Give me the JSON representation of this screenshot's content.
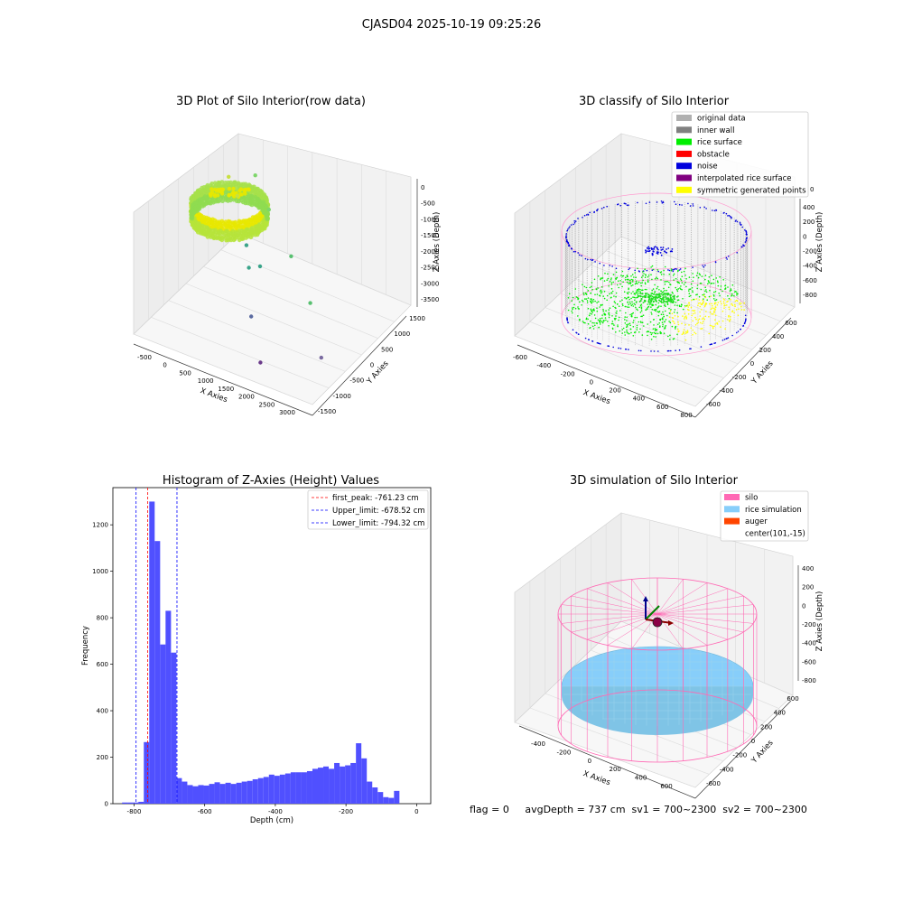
{
  "figure": {
    "suptitle": "CJASD04 2025-10-19 09:25:26",
    "status_line": "flag = 0     avgDepth = 737 cm  sv1 = 700~2300  sv2 = 700~2300"
  },
  "colors": {
    "raw_yellow": "#e8e800",
    "raw_green": "#8fdc50",
    "original_data": "#b0b0b0",
    "inner_wall": "#808080",
    "rice_surface": "#00ee00",
    "obstacle": "#ff0000",
    "noise": "#0000dd",
    "interpolated_rice_surface": "#800080",
    "symmetric_generated_points": "#ffff00",
    "silo": "#ff69b4",
    "rice_simulation": "#87cefa",
    "auger": "#ff4500",
    "hist_bar": "#4c4cff",
    "first_peak_line": "#ff0000",
    "limit_line": "#0000ff"
  },
  "chart_data": [
    {
      "type": "scatter",
      "id": "raw",
      "title": "3D Plot of Silo Interior(row data)",
      "xlabel": "X Axies",
      "ylabel": "Y Axies",
      "zlabel": "Z Axies (Depth)",
      "x_ticks": [
        "-500",
        "0",
        "500",
        "1000",
        "1500",
        "2000",
        "2500",
        "3000"
      ],
      "y_ticks": [
        "-1500",
        "-1000",
        "-500",
        "0",
        "500",
        "1000",
        "1500"
      ],
      "z_ticks": [
        "0",
        "-500",
        "-1000",
        "-1500",
        "-2000",
        "-2500",
        "-3000",
        "-3500"
      ],
      "xlim": [
        -600,
        3000
      ],
      "ylim": [
        -1500,
        1500
      ],
      "zlim": [
        -3700,
        0
      ],
      "outliers": [
        {
          "x": 400,
          "y": 800,
          "z": -600,
          "color": "#7ed66a"
        },
        {
          "x": 800,
          "y": 600,
          "z": -1200,
          "color": "#7ed66a"
        },
        {
          "x": 1500,
          "y": 200,
          "z": -1800,
          "color": "#58c070"
        },
        {
          "x": 2200,
          "y": -300,
          "z": -2300,
          "color": "#58c070"
        },
        {
          "x": 900,
          "y": -200,
          "z": -2100,
          "color": "#3aa48a"
        },
        {
          "x": 1000,
          "y": 0,
          "z": -2200,
          "color": "#3aa48a"
        },
        {
          "x": 600,
          "y": 200,
          "z": -2000,
          "color": "#3aa48a"
        },
        {
          "x": 1200,
          "y": -600,
          "z": -3000,
          "color": "#5a6aa0"
        },
        {
          "x": 2800,
          "y": -900,
          "z": -3000,
          "color": "#7a6aa0"
        },
        {
          "x": 1700,
          "y": -1100,
          "z": -3600,
          "color": "#6a3a8a"
        },
        {
          "x": 100,
          "y": 700,
          "z": -1300,
          "color": "#c8e040"
        },
        {
          "x": -200,
          "y": 900,
          "z": -1100,
          "color": "#c8e040"
        }
      ]
    },
    {
      "type": "scatter",
      "id": "classify",
      "title": "3D classify of Silo Interior",
      "xlabel": "X Axies",
      "ylabel": "Y Axies",
      "zlabel": "Z Axies (Depth)",
      "x_ticks": [
        "-600",
        "-400",
        "-200",
        "0",
        "200",
        "400",
        "600",
        "800"
      ],
      "y_ticks": [
        "-600",
        "-400",
        "-200",
        "0",
        "200",
        "400",
        "600"
      ],
      "z_ticks": [
        "400",
        "200",
        "0",
        "-200",
        "-400",
        "-600",
        "-800"
      ],
      "xlim": [
        -600,
        800
      ],
      "ylim": [
        -600,
        600
      ],
      "zlim": [
        -900,
        400
      ],
      "legend": [
        {
          "label": "original data",
          "color_key": "original_data"
        },
        {
          "label": "inner wall",
          "color_key": "inner_wall"
        },
        {
          "label": "rice surface",
          "color_key": "rice_surface"
        },
        {
          "label": "obstacle",
          "color_key": "obstacle"
        },
        {
          "label": "noise",
          "color_key": "noise"
        },
        {
          "label": "interpolated rice surface",
          "color_key": "interpolated_rice_surface"
        },
        {
          "label": "symmetric generated points",
          "color_key": "symmetric_generated_points"
        }
      ],
      "z_tick_edge_fragment": "0"
    },
    {
      "type": "bar",
      "id": "hist",
      "title": "Histogram of Z-Axies (Height) Values",
      "xlabel": "Depth (cm)",
      "ylabel": "Frequency",
      "xlim": [
        -860,
        40
      ],
      "ylim": [
        0,
        1360
      ],
      "x_ticks": [
        -800,
        -600,
        -400,
        -200,
        0
      ],
      "y_ticks": [
        0,
        200,
        400,
        600,
        800,
        1000,
        1200
      ],
      "bin_start": -834,
      "bin_width": 15.4,
      "values": [
        5,
        5,
        5,
        8,
        265,
        1300,
        1130,
        685,
        830,
        650,
        110,
        95,
        80,
        75,
        80,
        78,
        85,
        92,
        85,
        90,
        85,
        90,
        95,
        98,
        105,
        110,
        115,
        125,
        120,
        125,
        130,
        135,
        135,
        135,
        140,
        150,
        155,
        160,
        150,
        175,
        160,
        165,
        175,
        260,
        195,
        95,
        70,
        50,
        28,
        25,
        55
      ],
      "vlines": [
        {
          "label": "first_peak: -761.23 cm",
          "x": -761.23,
          "color_key": "first_peak_line"
        },
        {
          "label": "Upper_limit: -678.52 cm",
          "x": -678.52,
          "color_key": "limit_line"
        },
        {
          "label": "Lower_limit: -794.32 cm",
          "x": -794.32,
          "color_key": "limit_line"
        }
      ],
      "legend_position": "top-right"
    },
    {
      "type": "scatter",
      "id": "sim",
      "title": "3D simulation of Silo Interior",
      "xlabel": "X Axies",
      "ylabel": "Y Axies",
      "zlabel": "Z Axies (Depth)",
      "x_ticks": [
        "-400",
        "-200",
        "0",
        "200",
        "400",
        "600"
      ],
      "y_ticks": [
        "-600",
        "-400",
        "-200",
        "0",
        "200",
        "400",
        "600"
      ],
      "z_ticks": [
        "400",
        "200",
        "0",
        "-200",
        "-400",
        "-600",
        "-800"
      ],
      "xlim": [
        -600,
        700
      ],
      "ylim": [
        -600,
        600
      ],
      "zlim": [
        -900,
        400
      ],
      "legend": [
        {
          "label": "silo",
          "color_key": "silo"
        },
        {
          "label": "rice simulation",
          "color_key": "rice_simulation"
        },
        {
          "label": "auger",
          "color_key": "auger"
        },
        {
          "label": "center(101,-15)",
          "color_key": ""
        }
      ],
      "center": {
        "x": 101,
        "y": -15
      }
    }
  ]
}
